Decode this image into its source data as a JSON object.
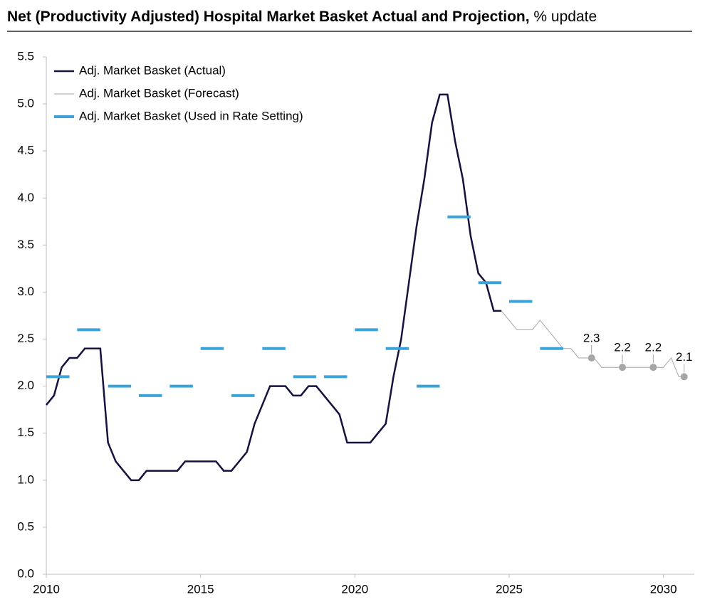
{
  "chart_data": {
    "type": "line",
    "title": "Net (Productivity Adjusted) Hospital Market Basket Actual and Projection,",
    "subtitle": "% update",
    "xlim": [
      2010,
      2031
    ],
    "xticks": [
      2010,
      2015,
      2020,
      2025,
      2030
    ],
    "ylim": [
      0,
      5.5
    ],
    "yticks": [
      {
        "value": 0,
        "label": "0.0"
      },
      0.5,
      {
        "value": 1,
        "label": "1.0"
      },
      1.5,
      {
        "value": 2,
        "label": "2.0"
      },
      2.5,
      {
        "value": 3,
        "label": "3.0"
      },
      3.5,
      {
        "value": 4,
        "label": "4.0"
      },
      4.5,
      {
        "value": 5,
        "label": "5.0"
      },
      5.5
    ],
    "grid": false,
    "legend": "top-left",
    "series": [
      {
        "name": "Adj. Market Basket (Actual)",
        "color": "#14123f",
        "mark": "line",
        "width": 2.5,
        "x": [
          2010,
          2010.25,
          2010.5,
          2010.75,
          2011,
          2011.25,
          2011.5,
          2011.75,
          2012,
          2012.25,
          2012.5,
          2012.75,
          2013,
          2013.25,
          2013.5,
          2013.75,
          2014,
          2014.25,
          2014.5,
          2014.75,
          2015,
          2015.25,
          2015.5,
          2015.75,
          2016,
          2016.25,
          2016.5,
          2016.75,
          2017,
          2017.25,
          2017.5,
          2017.75,
          2018,
          2018.25,
          2018.5,
          2018.75,
          2019,
          2019.25,
          2019.5,
          2019.75,
          2020,
          2020.25,
          2020.5,
          2020.75,
          2021,
          2021.25,
          2021.5,
          2021.75,
          2022,
          2022.25,
          2022.5,
          2022.75,
          2023,
          2023.25,
          2023.5,
          2023.75,
          2024,
          2024.25,
          2024.5,
          2024.75
        ],
        "values": [
          1.8,
          1.9,
          2.2,
          2.3,
          2.3,
          2.4,
          2.4,
          2.4,
          1.4,
          1.2,
          1.1,
          1.0,
          1.0,
          1.1,
          1.1,
          1.1,
          1.1,
          1.1,
          1.2,
          1.2,
          1.2,
          1.2,
          1.2,
          1.1,
          1.1,
          1.2,
          1.3,
          1.6,
          1.8,
          2.0,
          2.0,
          2.0,
          1.9,
          1.9,
          2.0,
          2.0,
          1.9,
          1.8,
          1.7,
          1.4,
          1.4,
          1.4,
          1.4,
          1.5,
          1.6,
          2.1,
          2.5,
          3.1,
          3.7,
          4.2,
          4.8,
          5.1,
          5.1,
          4.6,
          4.2,
          3.6,
          3.2,
          3.1,
          2.8,
          2.8
        ]
      },
      {
        "name": "Adj. Market Basket (Forecast)",
        "color": "#a6a6a6",
        "mark": "line",
        "width": 1,
        "x": [
          2024.75,
          2025,
          2025.25,
          2025.5,
          2025.75,
          2026,
          2026.25,
          2026.5,
          2026.75,
          2027,
          2027.25,
          2027.5,
          2027.75,
          2028,
          2028.25,
          2028.5,
          2028.75,
          2029,
          2029.25,
          2029.5,
          2029.75,
          2030,
          2030.25,
          2030.5,
          2030.75
        ],
        "values": [
          2.8,
          2.7,
          2.6,
          2.6,
          2.6,
          2.7,
          2.6,
          2.5,
          2.4,
          2.4,
          2.3,
          2.3,
          2.3,
          2.2,
          2.2,
          2.2,
          2.2,
          2.2,
          2.2,
          2.2,
          2.2,
          2.2,
          2.3,
          2.1,
          2.1
        ]
      },
      {
        "name": "Adj. Market Basket (Used in Rate Setting)",
        "color": "#3ba3da",
        "mark": "dash",
        "width": 4,
        "x": [
          2010,
          2011,
          2012,
          2013,
          2014,
          2015,
          2016,
          2017,
          2018,
          2019,
          2020,
          2021,
          2022,
          2023,
          2024,
          2025,
          2026
        ],
        "values": [
          2.1,
          2.6,
          2.0,
          1.9,
          2.0,
          2.4,
          1.9,
          2.4,
          2.1,
          2.1,
          2.6,
          2.4,
          2.0,
          3.8,
          3.1,
          2.9,
          2.4
        ]
      }
    ],
    "markers": {
      "color": "#a6a6a6",
      "x": [
        2027.67,
        2028.67,
        2029.67,
        2030.67
      ],
      "values": [
        2.3,
        2.2,
        2.2,
        2.1
      ]
    }
  }
}
